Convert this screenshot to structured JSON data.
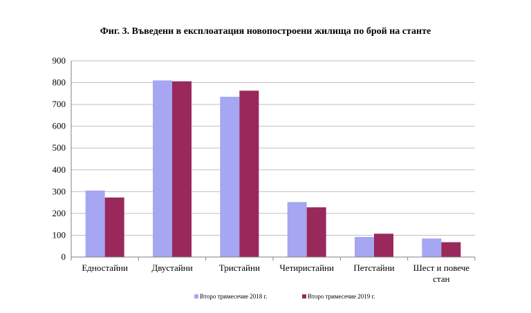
{
  "chart_data": {
    "type": "bar",
    "title": "Фиг. 3. Въведени в експлоатация новопостроени жилища по брой на станте",
    "xlabel": "",
    "ylabel": "",
    "categories": [
      "Едностайни",
      "Двустайни",
      "Тристайни",
      "Четиристайни",
      "Петстайни",
      "Шест и повече стан"
    ],
    "series": [
      {
        "name": "Второ тримесечие 2018 г.",
        "color": "#a6a6f2",
        "values": [
          305,
          810,
          735,
          252,
          92,
          85
        ]
      },
      {
        "name": "Второ тримесечие 2019 г.",
        "color": "#99295a",
        "values": [
          273,
          806,
          763,
          228,
          107,
          68
        ]
      }
    ],
    "ylim": [
      0,
      900
    ],
    "yticks": [
      0,
      100,
      200,
      300,
      400,
      500,
      600,
      700,
      800,
      900
    ],
    "grid": true,
    "legend_position": "bottom"
  }
}
